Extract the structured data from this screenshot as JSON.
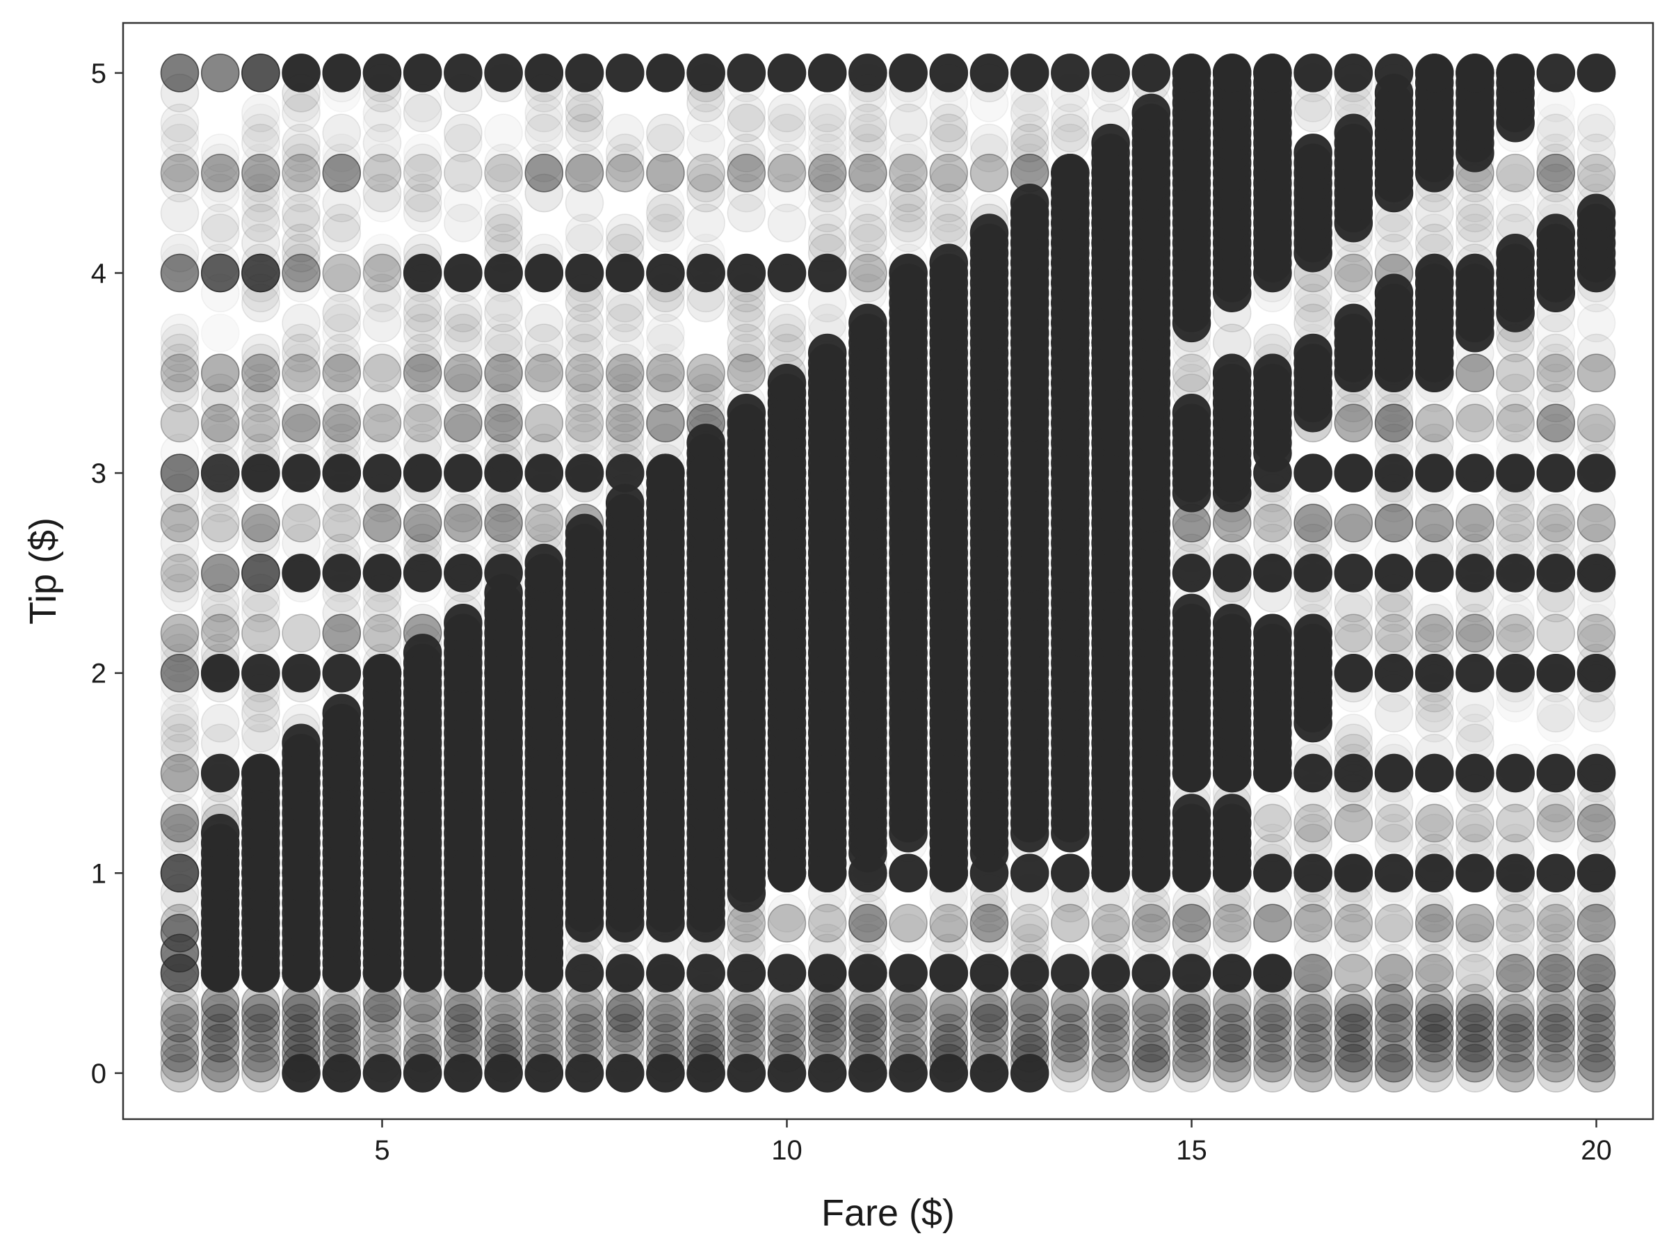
{
  "chart_data": {
    "type": "scatter",
    "title": "",
    "xlabel": "Fare ($)",
    "ylabel": "Tip ($)",
    "xlim": [
      1.8,
      20.7
    ],
    "ylim": [
      -0.23,
      5.25
    ],
    "xticks": [
      5,
      10,
      15,
      20
    ],
    "yticks": [
      0,
      1,
      2,
      3,
      4,
      5
    ],
    "xtick_labels": [
      "5",
      "10",
      "15",
      "20"
    ],
    "ytick_labels": [
      "0",
      "1",
      "2",
      "3",
      "4",
      "5"
    ],
    "grid": false,
    "legend": "none",
    "point_color": "#2a2a2a",
    "x_step": 0.5,
    "x_start": 2.5,
    "x_end": 20,
    "dense_regions": [
      {
        "x0": 3.0,
        "x1": 3.0,
        "y0": 0.5,
        "y1": 1.2
      },
      {
        "x0": 3.5,
        "x1": 3.5,
        "y0": 0.5,
        "y1": 1.5
      },
      {
        "x0": 4.0,
        "x1": 4.0,
        "y0": 0.5,
        "y1": 1.65
      },
      {
        "x0": 4.5,
        "x1": 4.5,
        "y0": 0.5,
        "y1": 1.8
      },
      {
        "x0": 5.0,
        "x1": 5.0,
        "y0": 0.5,
        "y1": 2.0
      },
      {
        "x0": 5.5,
        "x1": 5.5,
        "y0": 0.5,
        "y1": 2.1
      },
      {
        "x0": 6.0,
        "x1": 6.0,
        "y0": 0.5,
        "y1": 2.25
      },
      {
        "x0": 6.5,
        "x1": 6.5,
        "y0": 0.5,
        "y1": 2.4
      },
      {
        "x0": 7.0,
        "x1": 7.0,
        "y0": 0.5,
        "y1": 2.55
      },
      {
        "x0": 7.5,
        "x1": 7.5,
        "y0": 0.75,
        "y1": 2.7
      },
      {
        "x0": 8.0,
        "x1": 8.0,
        "y0": 0.75,
        "y1": 2.85
      },
      {
        "x0": 8.5,
        "x1": 8.5,
        "y0": 0.75,
        "y1": 3.0
      },
      {
        "x0": 9.0,
        "x1": 9.0,
        "y0": 0.75,
        "y1": 3.15
      },
      {
        "x0": 9.5,
        "x1": 9.5,
        "y0": 0.9,
        "y1": 3.3
      },
      {
        "x0": 10.0,
        "x1": 10.0,
        "y0": 1.0,
        "y1": 3.45
      },
      {
        "x0": 10.5,
        "x1": 10.5,
        "y0": 1.0,
        "y1": 3.6
      },
      {
        "x0": 11.0,
        "x1": 11.0,
        "y0": 1.1,
        "y1": 3.75
      },
      {
        "x0": 11.5,
        "x1": 11.5,
        "y0": 1.2,
        "y1": 4.0
      },
      {
        "x0": 12.0,
        "x1": 12.0,
        "y0": 1.0,
        "y1": 4.05
      },
      {
        "x0": 12.5,
        "x1": 12.5,
        "y0": 1.1,
        "y1": 4.2
      },
      {
        "x0": 13.0,
        "x1": 13.0,
        "y0": 1.2,
        "y1": 4.35
      },
      {
        "x0": 13.5,
        "x1": 13.5,
        "y0": 1.2,
        "y1": 4.5
      },
      {
        "x0": 14.0,
        "x1": 14.0,
        "y0": 1.0,
        "y1": 4.65
      },
      {
        "x0": 14.5,
        "x1": 14.5,
        "y0": 1.0,
        "y1": 4.8
      }
    ],
    "strong_levels": [
      {
        "y": 5.0,
        "x_from": 4.0,
        "x_to": 20.0
      },
      {
        "y": 4.0,
        "x_from": 5.5,
        "x_to": 10.5
      },
      {
        "y": 3.0,
        "x_from": 3.5,
        "x_to": 20.0
      },
      {
        "y": 2.5,
        "x_from": 4.0,
        "x_to": 20.0
      },
      {
        "y": 2.0,
        "x_from": 3.0,
        "x_to": 20.0
      },
      {
        "y": 1.5,
        "x_from": 3.0,
        "x_to": 20.0
      },
      {
        "y": 1.0,
        "x_from": 3.0,
        "x_to": 20.0
      },
      {
        "y": 0.5,
        "x_from": 3.0,
        "x_to": 16.0
      },
      {
        "y": 0.0,
        "x_from": 4.0,
        "x_to": 13.0
      }
    ],
    "upper_band": [
      {
        "x": 15.0,
        "y0": 3.75,
        "y1": 5.0
      },
      {
        "x": 15.5,
        "y0": 3.9,
        "y1": 5.0
      },
      {
        "x": 16.0,
        "y0": 4.0,
        "y1": 5.0
      },
      {
        "x": 16.5,
        "y0": 4.1,
        "y1": 4.6
      },
      {
        "x": 17.0,
        "y0": 4.25,
        "y1": 4.7
      },
      {
        "x": 17.5,
        "y0": 4.4,
        "y1": 4.9
      },
      {
        "x": 18.0,
        "y0": 4.5,
        "y1": 5.0
      },
      {
        "x": 18.5,
        "y0": 4.6,
        "y1": 5.0
      },
      {
        "x": 19.0,
        "y0": 4.75,
        "y1": 5.0
      },
      {
        "x": 17.5,
        "y0": 3.5,
        "y1": 3.9
      },
      {
        "x": 18.0,
        "y0": 3.5,
        "y1": 4.0
      },
      {
        "x": 18.5,
        "y0": 3.7,
        "y1": 4.0
      },
      {
        "x": 19.0,
        "y0": 3.8,
        "y1": 4.1
      },
      {
        "x": 19.5,
        "y0": 3.9,
        "y1": 4.2
      },
      {
        "x": 20.0,
        "y0": 4.0,
        "y1": 4.3
      },
      {
        "x": 15.5,
        "y0": 2.9,
        "y1": 3.5
      },
      {
        "x": 16.0,
        "y0": 3.1,
        "y1": 3.5
      },
      {
        "x": 16.5,
        "y0": 3.3,
        "y1": 3.6
      },
      {
        "x": 17.0,
        "y0": 3.5,
        "y1": 3.75
      },
      {
        "x": 15.0,
        "y0": 2.9,
        "y1": 3.3
      },
      {
        "x": 14.5,
        "y0": 2.8,
        "y1": 3.2
      },
      {
        "x": 14.0,
        "y0": 3.5,
        "y1": 4.5
      },
      {
        "x": 13.5,
        "y0": 3.4,
        "y1": 4.5
      },
      {
        "x": 13.0,
        "y0": 3.25,
        "y1": 4.3
      },
      {
        "x": 14.5,
        "y0": 3.5,
        "y1": 4.6
      },
      {
        "x": 15.0,
        "y0": 1.0,
        "y1": 1.3
      },
      {
        "x": 15.5,
        "y0": 1.0,
        "y1": 1.3
      },
      {
        "x": 15.0,
        "y0": 1.5,
        "y1": 2.3
      },
      {
        "x": 15.5,
        "y0": 1.5,
        "y1": 2.25
      },
      {
        "x": 16.0,
        "y0": 1.5,
        "y1": 2.2
      },
      {
        "x": 16.5,
        "y0": 1.75,
        "y1": 2.2
      }
    ]
  }
}
